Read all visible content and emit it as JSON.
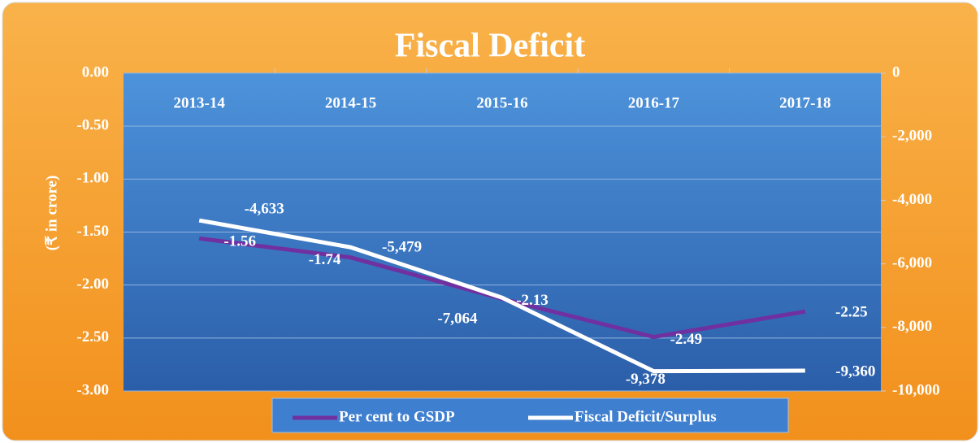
{
  "chart_data": {
    "type": "line",
    "title": "Fiscal Deficit",
    "y_label": "(₹ in crore)",
    "categories": [
      "2013-14",
      "2014-15",
      "2015-16",
      "2016-17",
      "2017-18"
    ],
    "series": [
      {
        "name": "Per cent to GSDP",
        "color": "#7030a0",
        "values": [
          -1.56,
          -1.74,
          -2.13,
          -2.49,
          -2.25
        ]
      },
      {
        "name": "Fiscal Deficit/Surplus",
        "color": "#ffffff",
        "axis": "y2",
        "values": [
          -4633,
          -5479,
          -7064,
          -9378,
          -9360
        ],
        "value_labels": [
          "-4,633",
          "-5,479",
          "-7,064",
          "-9,378",
          "-9,360"
        ]
      }
    ],
    "ylim": [
      -3,
      0
    ],
    "yticks": [
      {
        "value": 0,
        "label": "0.00"
      },
      {
        "value": -0.5,
        "label": "-0.50"
      },
      {
        "value": -1,
        "label": "-1.00"
      },
      {
        "value": -1.5,
        "label": "-1.50"
      },
      {
        "value": -2,
        "label": "-2.00"
      },
      {
        "value": -2.5,
        "label": "-2.50"
      },
      {
        "value": -3,
        "label": "-3.00"
      }
    ],
    "y2lim": [
      -10000,
      0
    ],
    "y2ticks": [
      0,
      {
        "value": -2000,
        "label": "-2,000"
      },
      {
        "value": -4000,
        "label": "-4,000"
      },
      {
        "value": -6000,
        "label": "-6,000"
      },
      {
        "value": -8000,
        "label": "-8,000"
      },
      {
        "value": -10000,
        "label": "-10,000"
      }
    ],
    "grid": true,
    "legend": "bottom"
  }
}
